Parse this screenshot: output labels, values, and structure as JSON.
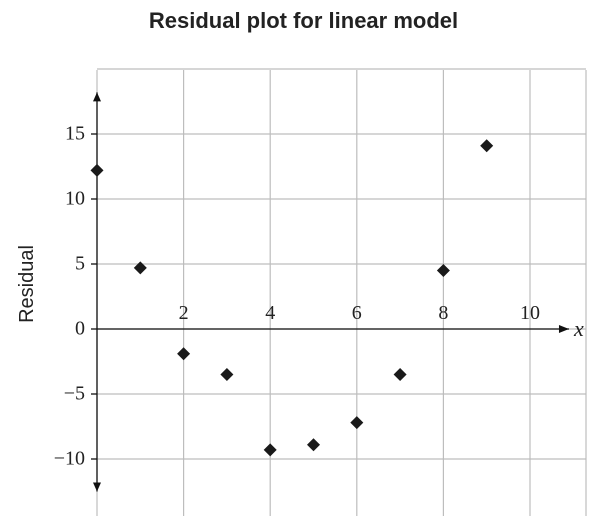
{
  "chart_data": {
    "type": "scatter",
    "title": "Residual plot for linear model",
    "xlabel": "x",
    "ylabel": "Residual",
    "xlim": [
      0,
      11.5
    ],
    "ylim": [
      -14,
      20
    ],
    "x_ticks": [
      2,
      4,
      6,
      8,
      10
    ],
    "y_ticks": [
      15,
      10,
      5,
      0,
      -5,
      -10
    ],
    "x_tick_labels": [
      "2",
      "4",
      "6",
      "8",
      "10"
    ],
    "y_tick_labels": [
      "15",
      "10",
      "5",
      "0",
      "−5",
      "−10"
    ],
    "grid": true,
    "marker": "diamond",
    "points": [
      {
        "x": 0,
        "y": 12.2
      },
      {
        "x": 1,
        "y": 4.7
      },
      {
        "x": 2,
        "y": -1.9
      },
      {
        "x": 3,
        "y": -3.5
      },
      {
        "x": 4,
        "y": -9.3
      },
      {
        "x": 5,
        "y": -8.9
      },
      {
        "x": 6,
        "y": -7.2
      },
      {
        "x": 7,
        "y": -3.5
      },
      {
        "x": 8,
        "y": 4.5
      },
      {
        "x": 9,
        "y": 14.1
      }
    ]
  }
}
